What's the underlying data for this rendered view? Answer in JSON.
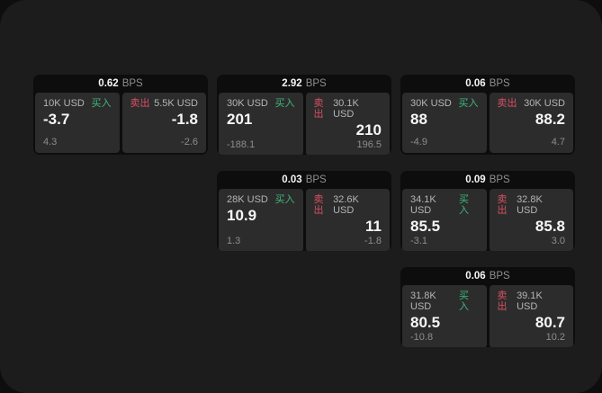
{
  "labels": {
    "bps_unit": "BPS",
    "buy": "买入",
    "sell": "卖出"
  },
  "colors": {
    "buy_green": "#3eb87d",
    "sell_red": "#d94f63",
    "stage_bg": "#1c1c1c",
    "card_bg": "#0d0d0e",
    "panel_bg": "#2c2c2c"
  },
  "cards": [
    {
      "bps": "0.62",
      "buy": {
        "amount": "10K USD",
        "price": "-3.7",
        "delta": "4.3"
      },
      "sell": {
        "amount": "5.5K USD",
        "price": "-1.8",
        "delta": "-2.6"
      }
    },
    {
      "bps": "2.92",
      "buy": {
        "amount": "30K USD",
        "price": "201",
        "delta": "-188.1"
      },
      "sell": {
        "amount": "30.1K USD",
        "price": "210",
        "delta": "196.5"
      }
    },
    {
      "bps": "0.06",
      "buy": {
        "amount": "30K USD",
        "price": "88",
        "delta": "-4.9"
      },
      "sell": {
        "amount": "30K USD",
        "price": "88.2",
        "delta": "4.7"
      }
    },
    {
      "bps": "0.03",
      "buy": {
        "amount": "28K USD",
        "price": "10.9",
        "delta": "1.3"
      },
      "sell": {
        "amount": "32.6K USD",
        "price": "11",
        "delta": "-1.8"
      }
    },
    {
      "bps": "0.09",
      "buy": {
        "amount": "34.1K USD",
        "price": "85.5",
        "delta": "-3.1"
      },
      "sell": {
        "amount": "32.8K USD",
        "price": "85.8",
        "delta": "3.0"
      }
    },
    {
      "bps": "0.06",
      "buy": {
        "amount": "31.8K USD",
        "price": "80.5",
        "delta": "-10.8"
      },
      "sell": {
        "amount": "39.1K USD",
        "price": "80.7",
        "delta": "10.2"
      }
    }
  ]
}
